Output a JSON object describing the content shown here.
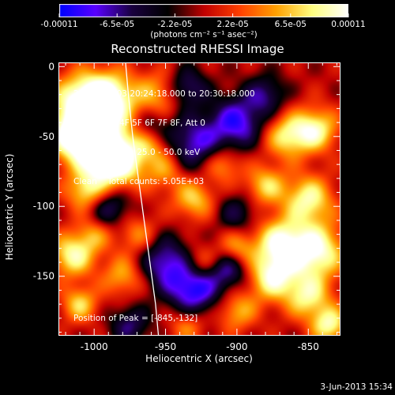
{
  "chart_data": {
    "type": "heatmap",
    "title": "Reconstructed RHESSI Image",
    "xlabel": "Heliocentric X (arcsec)",
    "ylabel": "Heliocentric Y (arcsec)",
    "xlim": [
      -1025,
      -828
    ],
    "ylim": [
      -192,
      3
    ],
    "x_ticks": [
      "-1000",
      "-950",
      "-900",
      "-850"
    ],
    "y_ticks": [
      "0",
      "-50",
      "-100",
      "-150"
    ],
    "colorbar": {
      "unit_label": "(photons cm⁻² s⁻¹ asec⁻²)",
      "range": [
        -0.00011,
        0.00011
      ],
      "tick_labels": [
        "-0.00011",
        "-6.5e-05",
        "-2.2e-05",
        "2.2e-05",
        "6.5e-05",
        "0.00011"
      ],
      "stops": [
        "#0000ff",
        "#5a00ff",
        "#1a0040",
        "#000000",
        "#c00000",
        "#ff4000",
        "#ffa000",
        "#ffff80",
        "#ffffff"
      ]
    },
    "annotations": [
      "29-Dec-2003 20:24:18.000 to 20:30:18.000",
      "Detectors: 4F 5F 6F 7F 8F, Att 0",
      "Energy Range: 25.0 - 50.0 keV",
      "Clean    Total counts: 5.05E+03",
      "Position of Peak = [-845,-132]"
    ],
    "peak": {
      "x": -845,
      "y": -132
    },
    "limb_curve_x_at_y": [
      [
        -978,
        3
      ],
      [
        -976,
        -20
      ],
      [
        -973,
        -50
      ],
      [
        -969,
        -80
      ],
      [
        -965,
        -110
      ],
      [
        -961,
        -140
      ],
      [
        -957,
        -170
      ],
      [
        -955,
        -192
      ]
    ],
    "blobs": [
      {
        "x": -1010,
        "y": -25,
        "v": 0.0001,
        "r": 14
      },
      {
        "x": -990,
        "y": -22,
        "v": 0.00011,
        "r": 13
      },
      {
        "x": -995,
        "y": -55,
        "v": 0.00011,
        "r": 16
      },
      {
        "x": -985,
        "y": -70,
        "v": 0.0001,
        "r": 13
      },
      {
        "x": -1015,
        "y": -50,
        "v": 9e-05,
        "r": 12
      },
      {
        "x": -1005,
        "y": -90,
        "v": 8e-05,
        "r": 10
      },
      {
        "x": -1015,
        "y": -135,
        "v": 9e-05,
        "r": 11
      },
      {
        "x": -1010,
        "y": -170,
        "v": 7e-05,
        "r": 9
      },
      {
        "x": -955,
        "y": -20,
        "v": 6e-05,
        "r": 12
      },
      {
        "x": -960,
        "y": -55,
        "v": 7e-05,
        "r": 10
      },
      {
        "x": -950,
        "y": -75,
        "v": 5e-05,
        "r": 10
      },
      {
        "x": -930,
        "y": -95,
        "v": 7e-05,
        "r": 10
      },
      {
        "x": -910,
        "y": -70,
        "v": 6e-05,
        "r": 9
      },
      {
        "x": -880,
        "y": -85,
        "v": 7e-05,
        "r": 10
      },
      {
        "x": -865,
        "y": -50,
        "v": 8e-05,
        "r": 11
      },
      {
        "x": -845,
        "y": -45,
        "v": 9e-05,
        "r": 11
      },
      {
        "x": -850,
        "y": -95,
        "v": 9e-05,
        "r": 12
      },
      {
        "x": -870,
        "y": -125,
        "v": 9e-05,
        "r": 12
      },
      {
        "x": -845,
        "y": -132,
        "v": 0.00011,
        "r": 14
      },
      {
        "x": -875,
        "y": -150,
        "v": 0.0001,
        "r": 12
      },
      {
        "x": -850,
        "y": -165,
        "v": 8e-05,
        "r": 11
      },
      {
        "x": -835,
        "y": -185,
        "v": 9e-05,
        "r": 9
      },
      {
        "x": -900,
        "y": -130,
        "v": 6e-05,
        "r": 9
      },
      {
        "x": -925,
        "y": -140,
        "v": 5e-05,
        "r": 9
      },
      {
        "x": -900,
        "y": -175,
        "v": 6e-05,
        "r": 10
      },
      {
        "x": -935,
        "y": -185,
        "v": 5e-05,
        "r": 9
      },
      {
        "x": -970,
        "y": -120,
        "v": 5e-05,
        "r": 10
      },
      {
        "x": -980,
        "y": -150,
        "v": 6e-05,
        "r": 10
      },
      {
        "x": -1000,
        "y": -120,
        "v": 5e-05,
        "r": 9
      },
      {
        "x": -960,
        "y": -45,
        "v": -6e-05,
        "r": 10
      },
      {
        "x": -930,
        "y": -55,
        "v": -8e-05,
        "r": 14
      },
      {
        "x": -900,
        "y": -40,
        "v": -9e-05,
        "r": 13
      },
      {
        "x": -880,
        "y": -20,
        "v": -6e-05,
        "r": 10
      },
      {
        "x": -935,
        "y": -15,
        "v": -7e-05,
        "r": 10
      },
      {
        "x": -950,
        "y": -140,
        "v": -8e-05,
        "r": 13
      },
      {
        "x": -930,
        "y": -160,
        "v": -0.0001,
        "r": 13
      },
      {
        "x": -905,
        "y": -145,
        "v": -7e-05,
        "r": 10
      },
      {
        "x": -990,
        "y": -100,
        "v": -7e-05,
        "r": 11
      },
      {
        "x": -975,
        "y": -185,
        "v": -6e-05,
        "r": 10
      },
      {
        "x": -900,
        "y": -105,
        "v": -5e-05,
        "r": 10
      }
    ]
  },
  "footer": {
    "date": "3-Jun-2013 15:34"
  }
}
